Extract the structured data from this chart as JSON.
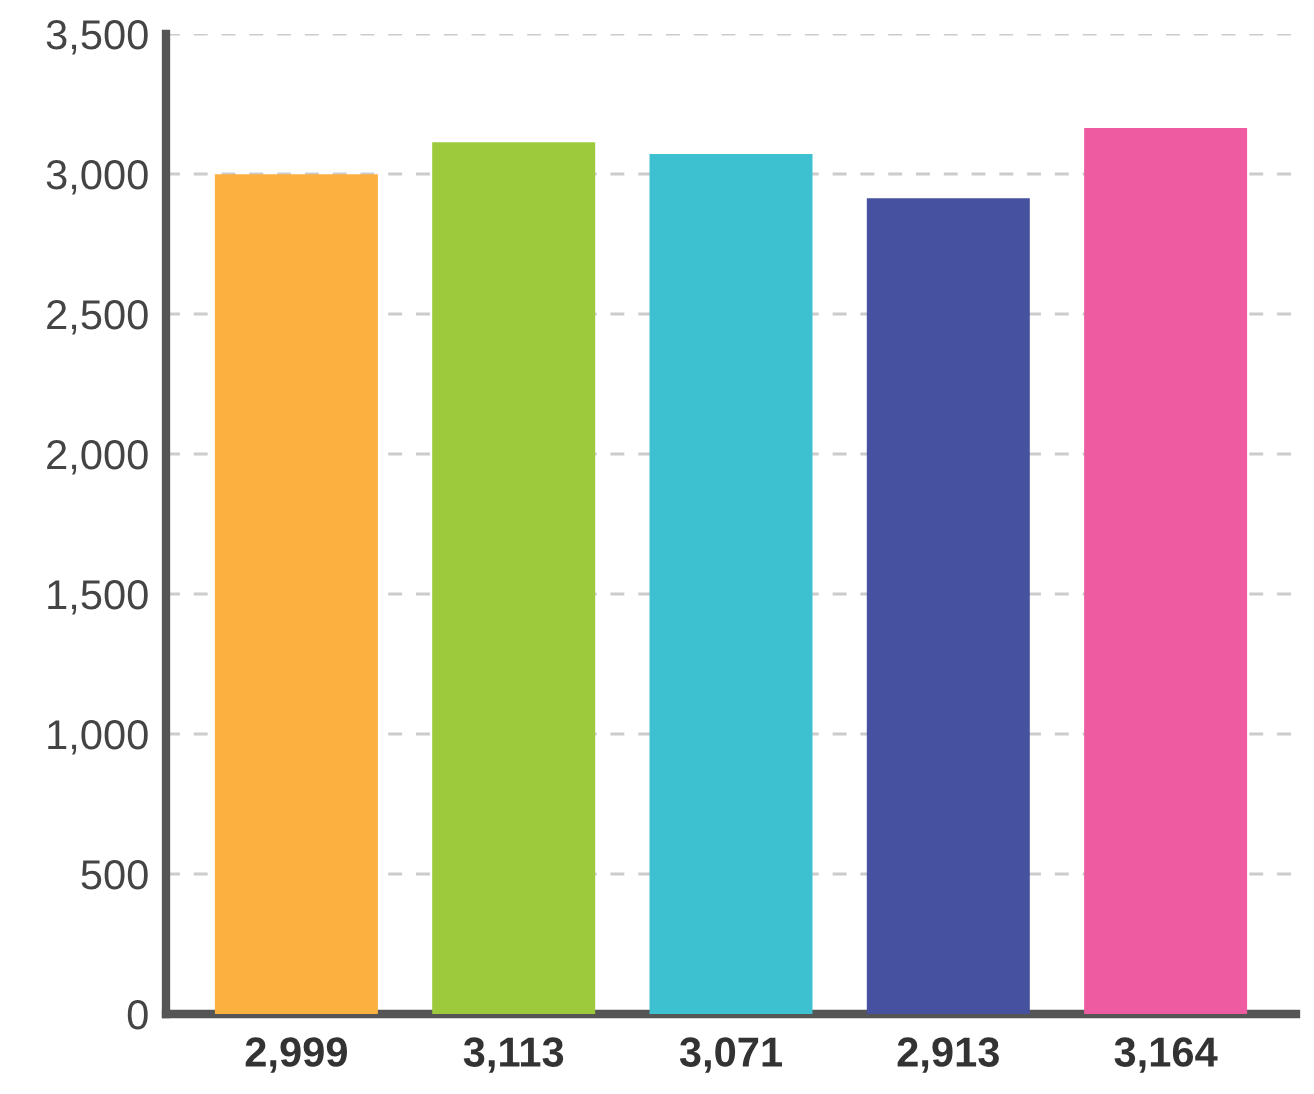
{
  "chart_data": {
    "type": "bar",
    "categories": [
      "2,999",
      "3,113",
      "3,071",
      "2,913",
      "3,164"
    ],
    "values": [
      2999,
      3113,
      3071,
      2913,
      3164
    ],
    "colors": [
      "#fbb040",
      "#9dca3c",
      "#3dc1d0",
      "#4651a0",
      "#ef5ba1"
    ],
    "ylim": [
      0,
      3500
    ],
    "yticks": [
      {
        "value": 0,
        "label": "0"
      },
      {
        "value": 500,
        "label": "500"
      },
      {
        "value": 1000,
        "label": "1,000"
      },
      {
        "value": 1500,
        "label": "1,500"
      },
      {
        "value": 2000,
        "label": "2,000"
      },
      {
        "value": 2500,
        "label": "2,500"
      },
      {
        "value": 3000,
        "label": "3,000"
      },
      {
        "value": 3500,
        "label": "3,500"
      }
    ],
    "grid": "y",
    "legend": false
  }
}
